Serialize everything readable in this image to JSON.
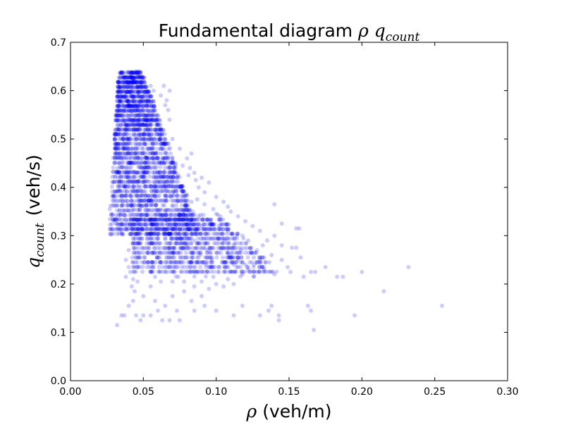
{
  "chart_data": {
    "type": "scatter",
    "title_text": "Fundamental diagram",
    "title_math": "ρ q",
    "title_math_sub": "count",
    "xlabel_math": "ρ",
    "xlabel_text": "(veh/m)",
    "ylabel_math": "q",
    "ylabel_math_sub": "count",
    "ylabel_text": "(veh/s)",
    "xlim": [
      0.0,
      0.3
    ],
    "ylim": [
      0.0,
      0.7
    ],
    "x_ticks": [
      "0.00",
      "0.05",
      "0.10",
      "0.15",
      "0.20",
      "0.25",
      "0.30"
    ],
    "y_ticks": [
      "0.0",
      "0.1",
      "0.2",
      "0.3",
      "0.4",
      "0.5",
      "0.6",
      "0.7"
    ],
    "grid": false,
    "marker_color": "#0000ff",
    "marker_alpha": 0.2,
    "series": [
      {
        "points": [
          [
            0.045,
            0.64
          ],
          [
            0.047,
            0.64
          ],
          [
            0.048,
            0.63
          ],
          [
            0.043,
            0.62
          ],
          [
            0.05,
            0.62
          ],
          [
            0.042,
            0.61
          ],
          [
            0.055,
            0.61
          ],
          [
            0.064,
            0.61
          ],
          [
            0.057,
            0.6
          ],
          [
            0.068,
            0.6
          ],
          [
            0.062,
            0.59
          ],
          [
            0.066,
            0.58
          ],
          [
            0.065,
            0.57
          ],
          [
            0.067,
            0.56
          ],
          [
            0.068,
            0.54
          ],
          [
            0.07,
            0.5
          ],
          [
            0.075,
            0.48
          ],
          [
            0.083,
            0.47
          ],
          [
            0.08,
            0.46
          ],
          [
            0.082,
            0.44
          ],
          [
            0.085,
            0.43
          ],
          [
            0.09,
            0.42
          ],
          [
            0.095,
            0.41
          ],
          [
            0.088,
            0.4
          ],
          [
            0.092,
            0.39
          ],
          [
            0.1,
            0.38
          ],
          [
            0.105,
            0.37
          ],
          [
            0.108,
            0.36
          ],
          [
            0.11,
            0.35
          ],
          [
            0.115,
            0.34
          ],
          [
            0.12,
            0.33
          ],
          [
            0.125,
            0.32
          ],
          [
            0.13,
            0.31
          ],
          [
            0.118,
            0.3
          ],
          [
            0.122,
            0.29
          ],
          [
            0.135,
            0.29
          ],
          [
            0.14,
            0.3
          ],
          [
            0.132,
            0.28
          ],
          [
            0.145,
            0.28
          ],
          [
            0.128,
            0.27
          ],
          [
            0.138,
            0.26
          ],
          [
            0.13,
            0.25
          ],
          [
            0.145,
            0.25
          ],
          [
            0.112,
            0.24
          ],
          [
            0.126,
            0.24
          ],
          [
            0.122,
            0.23
          ],
          [
            0.133,
            0.23
          ],
          [
            0.14,
            0.22
          ],
          [
            0.118,
            0.22
          ],
          [
            0.108,
            0.21
          ],
          [
            0.112,
            0.2
          ],
          [
            0.14,
            0.365
          ],
          [
            0.145,
            0.325
          ],
          [
            0.155,
            0.315
          ],
          [
            0.157,
            0.315
          ],
          [
            0.152,
            0.275
          ],
          [
            0.155,
            0.275
          ],
          [
            0.149,
            0.235
          ],
          [
            0.151,
            0.225
          ],
          [
            0.158,
            0.255
          ],
          [
            0.165,
            0.225
          ],
          [
            0.168,
            0.225
          ],
          [
            0.16,
            0.215
          ],
          [
            0.175,
            0.235
          ],
          [
            0.183,
            0.215
          ],
          [
            0.187,
            0.215
          ],
          [
            0.2,
            0.225
          ],
          [
            0.215,
            0.185
          ],
          [
            0.232,
            0.235
          ],
          [
            0.255,
            0.155
          ],
          [
            0.195,
            0.135
          ],
          [
            0.163,
            0.155
          ],
          [
            0.165,
            0.145
          ],
          [
            0.167,
            0.105
          ],
          [
            0.143,
            0.135
          ],
          [
            0.143,
            0.125
          ],
          [
            0.136,
            0.145
          ],
          [
            0.13,
            0.135
          ],
          [
            0.138,
            0.155
          ],
          [
            0.118,
            0.155
          ],
          [
            0.112,
            0.135
          ],
          [
            0.1,
            0.145
          ],
          [
            0.092,
            0.155
          ],
          [
            0.085,
            0.145
          ],
          [
            0.073,
            0.145
          ],
          [
            0.075,
            0.125
          ],
          [
            0.068,
            0.125
          ],
          [
            0.063,
            0.125
          ],
          [
            0.06,
            0.145
          ],
          [
            0.055,
            0.135
          ],
          [
            0.05,
            0.135
          ],
          [
            0.048,
            0.125
          ],
          [
            0.045,
            0.135
          ],
          [
            0.043,
            0.165
          ],
          [
            0.04,
            0.155
          ],
          [
            0.037,
            0.135
          ],
          [
            0.035,
            0.135
          ],
          [
            0.032,
            0.115
          ],
          [
            0.038,
            0.215
          ],
          [
            0.042,
            0.195
          ],
          [
            0.044,
            0.185
          ],
          [
            0.05,
            0.175
          ],
          [
            0.055,
            0.195
          ],
          [
            0.058,
            0.165
          ],
          [
            0.065,
            0.155
          ],
          [
            0.07,
            0.175
          ],
          [
            0.078,
            0.185
          ],
          [
            0.083,
            0.165
          ],
          [
            0.09,
            0.175
          ],
          [
            0.095,
            0.19
          ],
          [
            0.1,
            0.2
          ],
          [
            0.105,
            0.195
          ],
          [
            0.028,
            0.345
          ],
          [
            0.027,
            0.355
          ],
          [
            0.029,
            0.335
          ],
          [
            0.031,
            0.325
          ],
          [
            0.033,
            0.315
          ],
          [
            0.035,
            0.305
          ],
          [
            0.04,
            0.27
          ],
          [
            0.038,
            0.25
          ],
          [
            0.04,
            0.235
          ],
          [
            0.041,
            0.225
          ],
          [
            0.043,
            0.21
          ],
          [
            0.046,
            0.205
          ],
          [
            0.047,
            0.255
          ],
          [
            0.049,
            0.245
          ],
          [
            0.058,
            0.215
          ],
          [
            0.062,
            0.205
          ],
          [
            0.066,
            0.225
          ],
          [
            0.07,
            0.205
          ],
          [
            0.074,
            0.215
          ],
          [
            0.078,
            0.205
          ],
          [
            0.085,
            0.195
          ],
          [
            0.087,
            0.225
          ],
          [
            0.09,
            0.205
          ],
          [
            0.098,
            0.215
          ],
          [
            0.102,
            0.225
          ],
          [
            0.106,
            0.235
          ],
          [
            0.074,
            0.425
          ],
          [
            0.07,
            0.455
          ],
          [
            0.072,
            0.445
          ],
          [
            0.077,
            0.445
          ],
          [
            0.081,
            0.425
          ],
          [
            0.086,
            0.415
          ],
          [
            0.076,
            0.395
          ],
          [
            0.08,
            0.385
          ],
          [
            0.087,
            0.375
          ],
          [
            0.092,
            0.365
          ],
          [
            0.098,
            0.355
          ],
          [
            0.1,
            0.345
          ],
          [
            0.103,
            0.34
          ],
          [
            0.096,
            0.33
          ],
          [
            0.102,
            0.32
          ],
          [
            0.108,
            0.31
          ],
          [
            0.114,
            0.3
          ],
          [
            0.106,
            0.29
          ],
          [
            0.112,
            0.28
          ],
          [
            0.117,
            0.27
          ],
          [
            0.109,
            0.26
          ],
          [
            0.115,
            0.25
          ],
          [
            0.12,
            0.24
          ],
          [
            0.097,
            0.25
          ],
          [
            0.093,
            0.24
          ],
          [
            0.089,
            0.26
          ],
          [
            0.094,
            0.27
          ],
          [
            0.08,
            0.28
          ],
          [
            0.085,
            0.29
          ],
          [
            0.079,
            0.3
          ],
          [
            0.086,
            0.31
          ],
          [
            0.09,
            0.32
          ],
          [
            0.082,
            0.33
          ],
          [
            0.088,
            0.34
          ],
          [
            0.084,
            0.35
          ],
          [
            0.079,
            0.36
          ],
          [
            0.083,
            0.37
          ],
          [
            0.078,
            0.38
          ]
        ]
      }
    ]
  }
}
